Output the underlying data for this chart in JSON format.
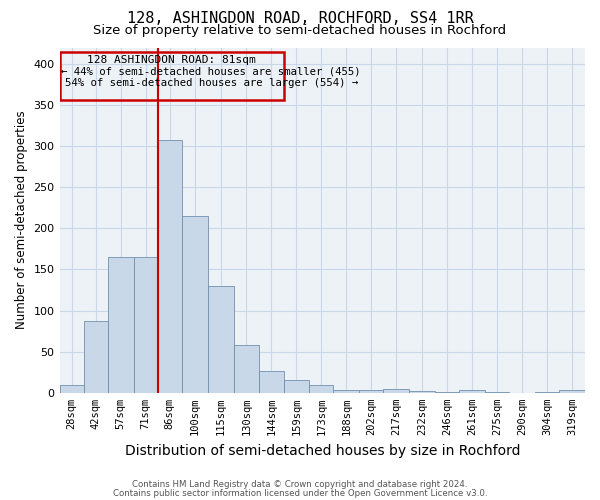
{
  "title": "128, ASHINGDON ROAD, ROCHFORD, SS4 1RR",
  "subtitle": "Size of property relative to semi-detached houses in Rochford",
  "xlabel": "Distribution of semi-detached houses by size in Rochford",
  "ylabel": "Number of semi-detached properties",
  "footer1": "Contains HM Land Registry data © Crown copyright and database right 2024.",
  "footer2": "Contains public sector information licensed under the Open Government Licence v3.0.",
  "annotation_line1": "128 ASHINGDON ROAD: 81sqm",
  "annotation_line2": "← 44% of semi-detached houses are smaller (455)",
  "annotation_line3": "54% of semi-detached houses are larger (554) →",
  "bar_color": "#c8d8e8",
  "bar_edge_color": "#7090b0",
  "vline_color": "#cc0000",
  "vline_x_bin_index": 4,
  "categories": [
    "28sqm",
    "42sqm",
    "57sqm",
    "71sqm",
    "86sqm",
    "100sqm",
    "115sqm",
    "130sqm",
    "144sqm",
    "159sqm",
    "173sqm",
    "188sqm",
    "202sqm",
    "217sqm",
    "232sqm",
    "246sqm",
    "261sqm",
    "275sqm",
    "290sqm",
    "304sqm",
    "319sqm"
  ],
  "bin_edges": [
    21,
    35,
    49,
    64,
    78,
    92,
    107,
    122,
    137,
    151,
    166,
    180,
    195,
    209,
    224,
    239,
    253,
    268,
    282,
    297,
    311,
    326
  ],
  "values": [
    10,
    87,
    165,
    165,
    308,
    215,
    130,
    58,
    27,
    15,
    10,
    4,
    3,
    5,
    2,
    1,
    3,
    1,
    0,
    1,
    3
  ],
  "ylim": [
    0,
    420
  ],
  "yticks": [
    0,
    50,
    100,
    150,
    200,
    250,
    300,
    350,
    400
  ],
  "grid_color": "#c8d8e8",
  "background_color": "#edf2f7",
  "box_color": "#cc0000",
  "title_fontsize": 11,
  "subtitle_fontsize": 9.5,
  "xlabel_fontsize": 10,
  "ylabel_fontsize": 8.5,
  "tick_fontsize": 7.5,
  "ann_fontsize": 8.0
}
